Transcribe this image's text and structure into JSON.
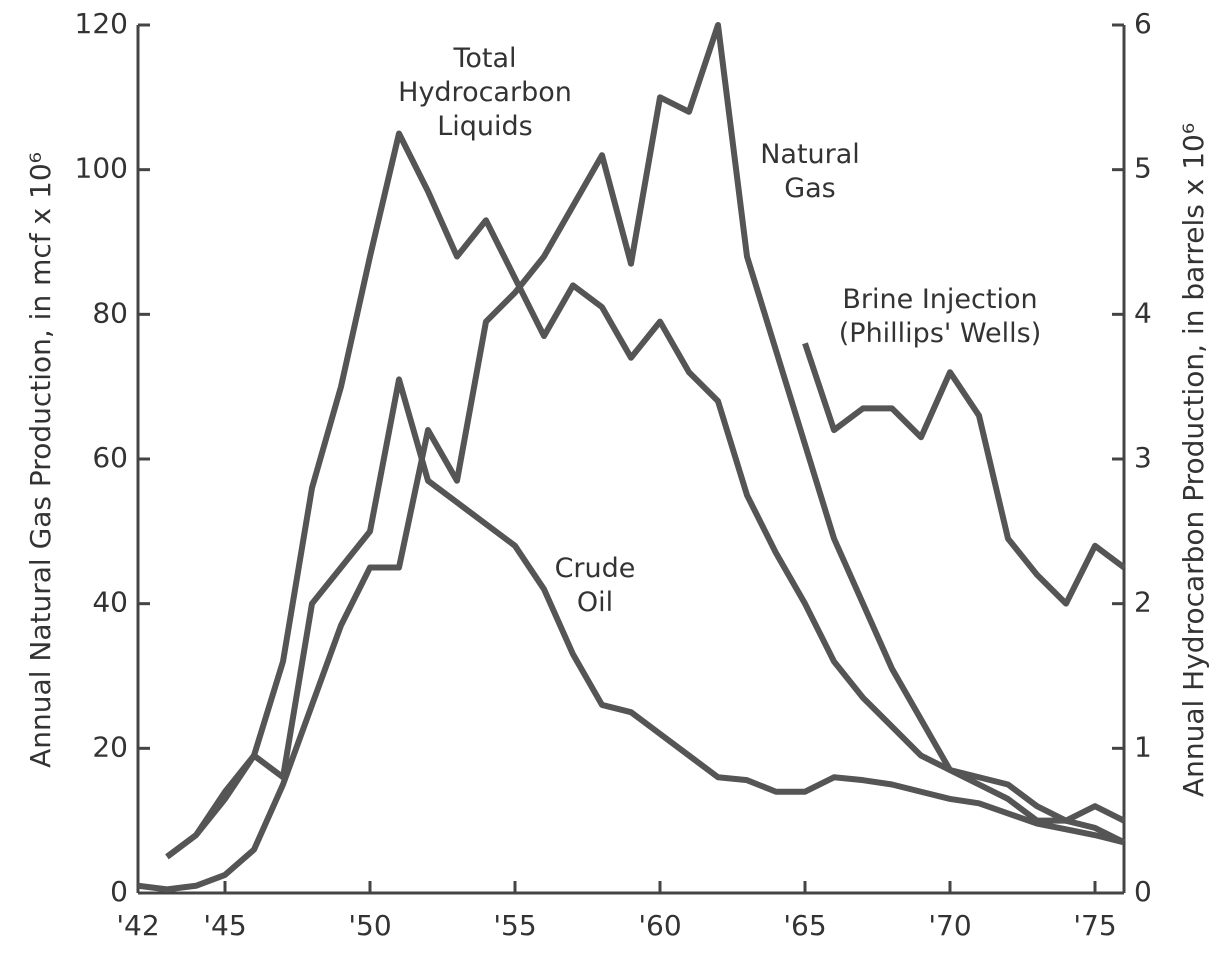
{
  "chart_data": {
    "type": "line",
    "y_label": "Annual Natural Gas Production, in mcf x 10⁶",
    "y2_label": "Annual Hydrocarbon Production, in barrels x 10⁶",
    "xlim": [
      1942,
      1976
    ],
    "xticks": [
      {
        "value": 1942,
        "label": "'42"
      },
      {
        "value": 1945,
        "label": "'45"
      },
      {
        "value": 1950,
        "label": "'50"
      },
      {
        "value": 1955,
        "label": "'55"
      },
      {
        "value": 1960,
        "label": "'60"
      },
      {
        "value": 1965,
        "label": "'65"
      },
      {
        "value": 1970,
        "label": "'70"
      },
      {
        "value": 1975,
        "label": "'75"
      }
    ],
    "ylim": [
      0,
      120
    ],
    "yticks": [
      0,
      20,
      40,
      60,
      80,
      100,
      120
    ],
    "y2lim": [
      0,
      6
    ],
    "y2ticks": [
      0,
      1,
      2,
      3,
      4,
      5,
      6
    ],
    "series": [
      {
        "name": "Total Hydrocarbon Liquids",
        "color": "#555555",
        "axis": "y2",
        "x": [
          1943,
          1944,
          1945,
          1946,
          1947,
          1948,
          1949,
          1950,
          1951,
          1952,
          1953,
          1954,
          1955,
          1956,
          1957,
          1958,
          1959,
          1960,
          1961,
          1962,
          1963,
          1964,
          1965,
          1966,
          1967,
          1968,
          1969,
          1970,
          1971,
          1972,
          1973,
          1974,
          1975,
          1976
        ],
        "values": [
          0.25,
          0.4,
          0.7,
          0.95,
          1.6,
          2.8,
          3.5,
          4.4,
          5.25,
          4.85,
          4.4,
          4.65,
          4.25,
          3.85,
          4.2,
          4.05,
          3.7,
          3.95,
          3.6,
          3.4,
          2.75,
          2.35,
          2.0,
          1.6,
          1.35,
          1.15,
          0.95,
          0.85,
          0.8,
          0.75,
          0.6,
          0.5,
          0.45,
          0.35
        ]
      },
      {
        "name": "Natural Gas",
        "color": "#555555",
        "x": [
          1942,
          1943,
          1944,
          1945,
          1946,
          1947,
          1948,
          1949,
          1950,
          1951,
          1952,
          1953,
          1954,
          1955,
          1956,
          1957,
          1958,
          1959,
          1960,
          1961,
          1962,
          1963,
          1964,
          1965,
          1966,
          1967,
          1968,
          1969,
          1970,
          1971,
          1972,
          1973,
          1974,
          1975,
          1976
        ],
        "values": [
          1,
          0.5,
          1,
          2.5,
          6,
          15,
          26,
          37,
          45,
          45,
          64,
          57,
          79,
          83,
          88,
          95,
          102,
          87,
          110,
          108,
          120,
          88,
          75,
          62,
          49,
          40,
          31,
          24,
          17,
          15,
          13,
          10,
          10,
          12,
          10
        ]
      },
      {
        "name": "Brine Injection (Phillips' Wells)",
        "color": "#555555",
        "axis": "y2",
        "x": [
          1965,
          1966,
          1967,
          1968,
          1969,
          1970,
          1971,
          1972,
          1973,
          1974,
          1975,
          1976
        ],
        "values": [
          3.8,
          3.2,
          3.35,
          3.35,
          3.15,
          3.6,
          3.3,
          2.45,
          2.2,
          2.0,
          2.4,
          2.25
        ]
      },
      {
        "name": "Crude Oil",
        "color": "#555555",
        "axis": "y2",
        "x": [
          1943,
          1944,
          1945,
          1946,
          1947,
          1948,
          1949,
          1950,
          1951,
          1952,
          1953,
          1954,
          1955,
          1956,
          1957,
          1958,
          1959,
          1960,
          1961,
          1962,
          1963,
          1964,
          1965,
          1966,
          1967,
          1968,
          1969,
          1970,
          1971,
          1972,
          1973,
          1974,
          1975,
          1976
        ],
        "values": [
          0.25,
          0.4,
          0.65,
          0.95,
          0.8,
          2.0,
          2.25,
          2.5,
          3.55,
          2.85,
          2.7,
          2.55,
          2.4,
          2.1,
          1.65,
          1.3,
          1.25,
          1.1,
          0.95,
          0.8,
          0.78,
          0.7,
          0.7,
          0.8,
          0.78,
          0.75,
          0.7,
          0.65,
          0.62,
          0.55,
          0.48,
          0.44,
          0.4,
          0.35
        ]
      }
    ]
  }
}
